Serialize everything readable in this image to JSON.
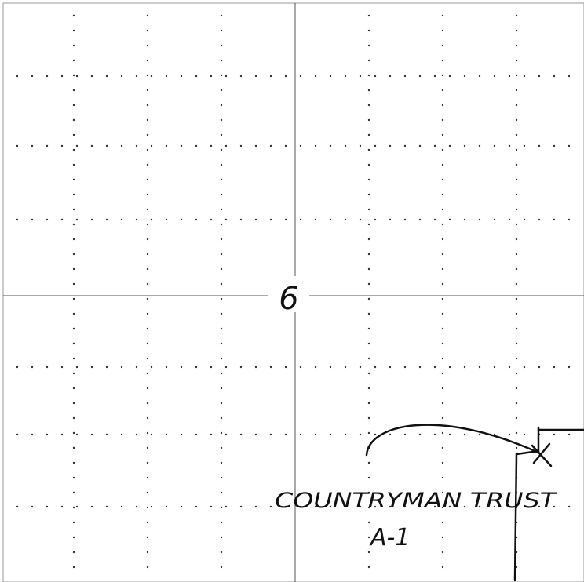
{
  "sheet": {
    "section_number": "6",
    "parcel_name": "COUNTRYMAN TRUST",
    "parcel_id": "A-1"
  },
  "colors": {
    "paper": "#ffffff",
    "ink": "#111111",
    "grid_dots": "#333333",
    "frame": "#9a9a9a"
  }
}
